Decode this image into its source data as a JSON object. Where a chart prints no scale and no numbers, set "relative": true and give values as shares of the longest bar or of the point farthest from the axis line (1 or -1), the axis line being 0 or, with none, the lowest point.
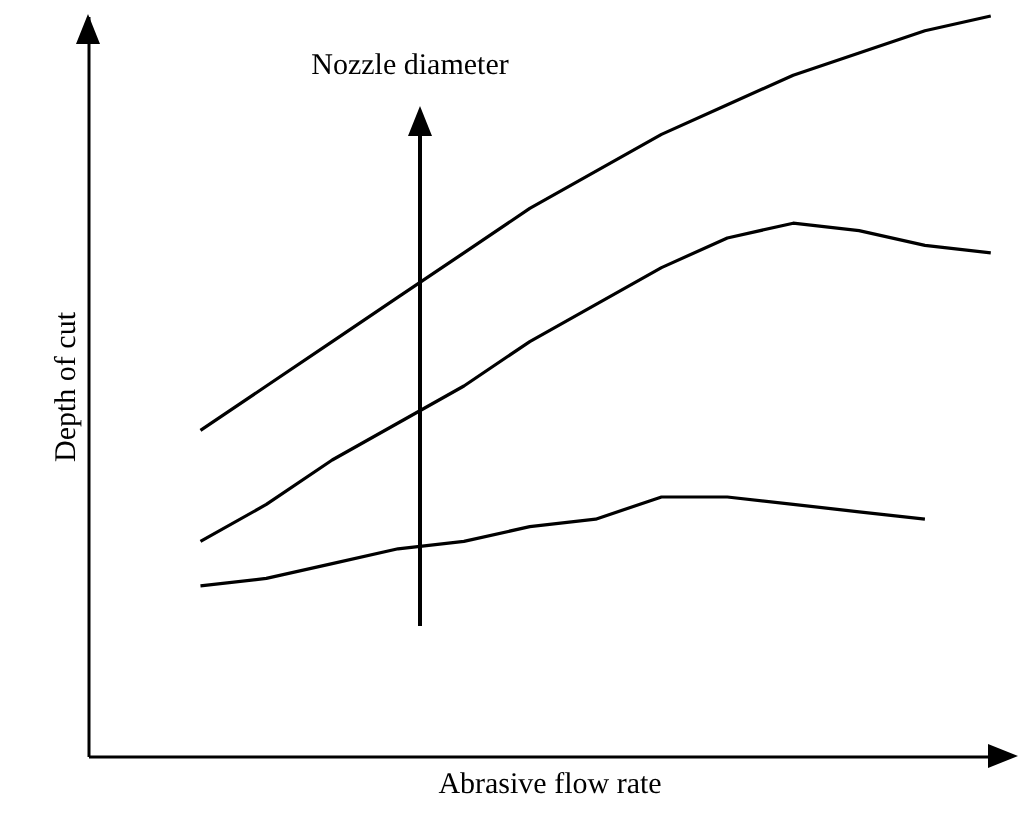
{
  "chart_data": {
    "type": "line",
    "relative": true,
    "xlabel": "Abrasive flow rate",
    "ylabel": "Depth of cut",
    "annotations": [
      "Nozzle diameter"
    ],
    "tick_labels": false,
    "marker": "none",
    "line_style": "solid",
    "categories": [
      null,
      null,
      null,
      null,
      null,
      null,
      null,
      null,
      null,
      null,
      null,
      null,
      null
    ],
    "series": [
      {
        "color": "#000000",
        "values": [
          0.44,
          0.5,
          0.56,
          0.62,
          0.68,
          0.74,
          0.79,
          0.84,
          0.88,
          0.92,
          0.95,
          0.98,
          1.0
        ]
      },
      {
        "color": "#000000",
        "values": [
          0.29,
          0.34,
          0.4,
          0.45,
          0.5,
          0.56,
          0.61,
          0.66,
          0.7,
          0.72,
          0.71,
          0.69,
          0.68
        ]
      },
      {
        "color": "#000000",
        "values": [
          0.23,
          0.24,
          0.26,
          0.28,
          0.29,
          0.31,
          0.32,
          0.35,
          0.35,
          0.34,
          0.33,
          0.32,
          null
        ]
      }
    ]
  }
}
